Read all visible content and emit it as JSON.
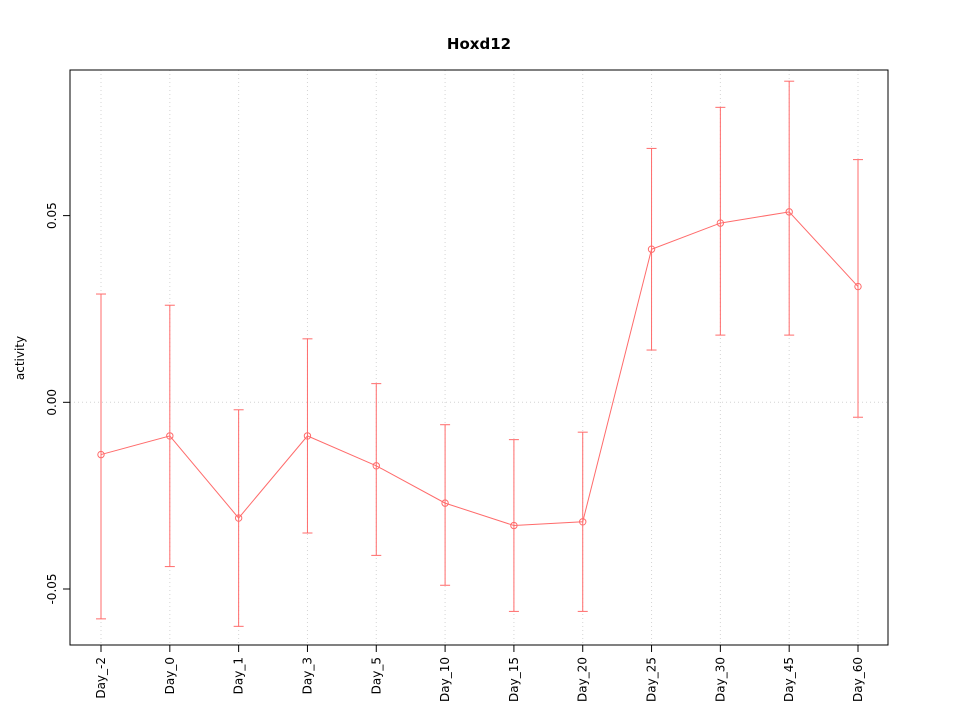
{
  "chart_data": {
    "type": "line",
    "title": "Hoxd12",
    "xlabel": "",
    "ylabel": "activity",
    "categories": [
      "Day_-2",
      "Day_0",
      "Day_1",
      "Day_3",
      "Day_5",
      "Day_10",
      "Day_15",
      "Day_20",
      "Day_25",
      "Day_30",
      "Day_45",
      "Day_60"
    ],
    "series": [
      {
        "name": "activity",
        "values": [
          -0.014,
          -0.009,
          -0.031,
          -0.009,
          -0.017,
          -0.027,
          -0.033,
          -0.032,
          0.041,
          0.048,
          0.051,
          0.031
        ],
        "upper": [
          0.029,
          0.026,
          -0.002,
          0.017,
          0.005,
          -0.006,
          -0.01,
          -0.008,
          0.068,
          0.079,
          0.086,
          0.065
        ],
        "lower": [
          -0.058,
          -0.044,
          -0.06,
          -0.035,
          -0.041,
          -0.049,
          -0.056,
          -0.056,
          0.014,
          0.018,
          0.018,
          -0.004
        ]
      }
    ],
    "yticks": [
      -0.05,
      0,
      0.05
    ],
    "ytick_labels": [
      "-0.05",
      "0.00",
      "0.05"
    ],
    "ylim": [
      -0.065,
      0.089
    ],
    "grid": true,
    "legend": "none",
    "marker": "open-circle",
    "line_color": "#ff6b6b",
    "grid_color": "#d4d4d4",
    "frame_color": "#000000"
  }
}
